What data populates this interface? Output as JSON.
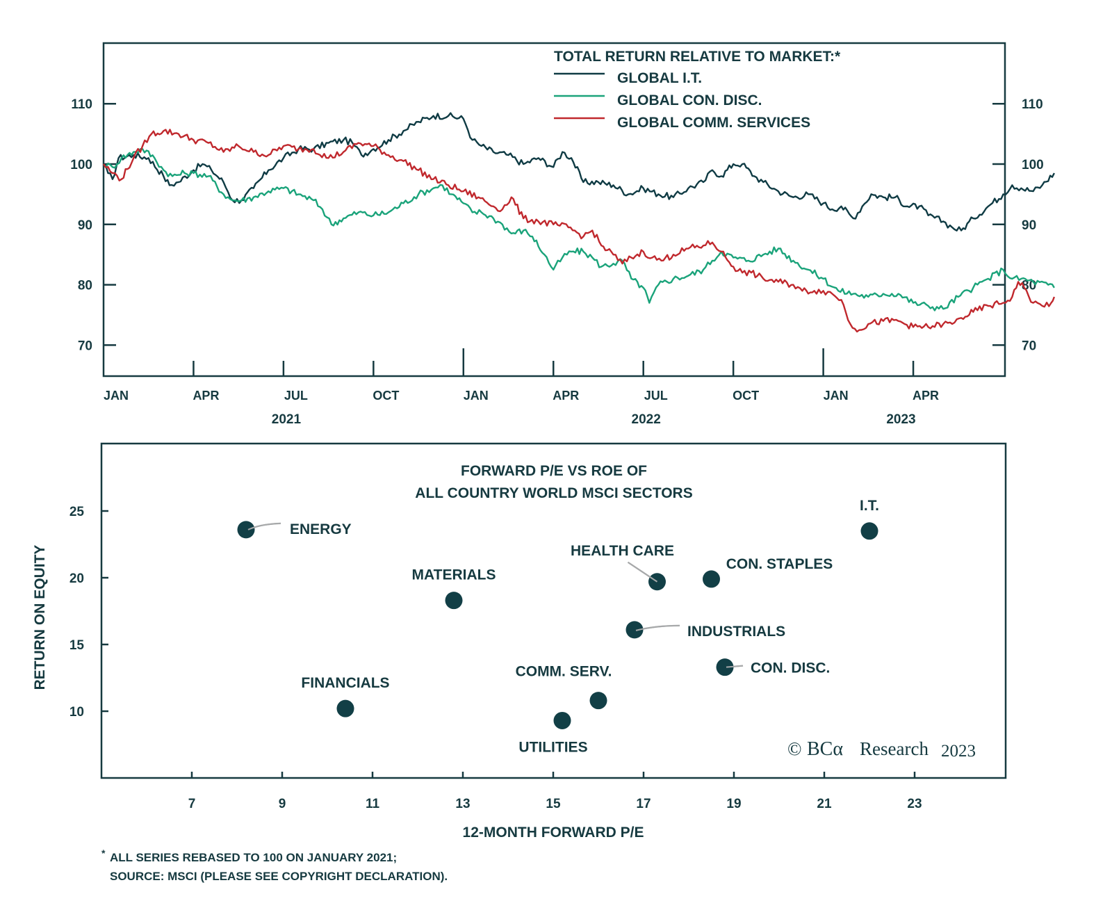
{
  "colors": {
    "frame": "#163a40",
    "global_it": "#0f3b44",
    "global_con_disc": "#1aa37a",
    "global_comm_services": "#c0282d",
    "point": "#123f46",
    "leader": "#a7a9aa"
  },
  "chart_data": [
    {
      "type": "line",
      "title": "TOTAL RETURN RELATIVE TO MARKET:*",
      "xlabel": "",
      "ylabel": "",
      "ylim": [
        65,
        120
      ],
      "yticks": [
        70,
        80,
        90,
        100,
        110
      ],
      "ytick_labels": [
        "70",
        "80",
        "90",
        "100",
        "110"
      ],
      "x_unit": "months since Jan 2021",
      "xlim": [
        0,
        30
      ],
      "xticks": [
        0,
        3,
        6,
        9,
        12,
        15,
        18,
        21,
        24,
        27
      ],
      "xtick_labels": [
        "JAN",
        "APR",
        "JUL",
        "OCT",
        "JAN",
        "APR",
        "JUL",
        "OCT",
        "JAN",
        "APR"
      ],
      "year_labels": [
        {
          "label": "2021",
          "at": 6
        },
        {
          "label": "2022",
          "at": 18
        },
        {
          "label": "2023",
          "at": 26.5
        }
      ],
      "legend_position": "top-right",
      "grid": false,
      "series": [
        {
          "name": "GLOBAL I.T.",
          "color_key": "global_it",
          "points": [
            [
              0,
              100
            ],
            [
              0.15,
              98.5
            ],
            [
              0.3,
              97.5
            ],
            [
              0.5,
              101
            ],
            [
              1,
              101.5
            ],
            [
              1.5,
              101
            ],
            [
              2,
              98
            ],
            [
              2.2,
              96.5
            ],
            [
              2.5,
              97
            ],
            [
              3,
              99
            ],
            [
              3.3,
              100
            ],
            [
              3.6,
              99
            ],
            [
              4,
              97
            ],
            [
              4.3,
              94
            ],
            [
              4.6,
              94
            ],
            [
              5,
              96
            ],
            [
              5.5,
              99
            ],
            [
              6,
              101
            ],
            [
              6.5,
              102.5
            ],
            [
              7,
              102.5
            ],
            [
              7.5,
              103.5
            ],
            [
              8,
              104
            ],
            [
              8.3,
              103.5
            ],
            [
              8.6,
              101.5
            ],
            [
              9,
              102.5
            ],
            [
              9.5,
              104
            ],
            [
              10,
              105.5
            ],
            [
              10.5,
              107
            ],
            [
              11,
              108
            ],
            [
              11.5,
              108
            ],
            [
              12,
              107.5
            ],
            [
              12.3,
              104
            ],
            [
              12.6,
              103
            ],
            [
              13,
              102
            ],
            [
              13.5,
              101.5
            ],
            [
              14,
              100
            ],
            [
              14.5,
              101
            ],
            [
              15,
              99.5
            ],
            [
              15.3,
              102
            ],
            [
              15.6,
              101
            ],
            [
              16,
              97
            ],
            [
              16.5,
              97
            ],
            [
              17,
              96.5
            ],
            [
              17.5,
              95
            ],
            [
              18,
              96
            ],
            [
              18.5,
              95
            ],
            [
              19,
              94.5
            ],
            [
              19.5,
              96
            ],
            [
              20,
              97
            ],
            [
              20.3,
              99
            ],
            [
              20.6,
              98
            ],
            [
              21,
              100
            ],
            [
              21.3,
              100
            ],
            [
              21.7,
              98
            ],
            [
              22,
              97
            ],
            [
              22.5,
              95.5
            ],
            [
              23,
              94.5
            ],
            [
              23.5,
              95
            ],
            [
              24,
              93.5
            ],
            [
              24.3,
              92.5
            ],
            [
              24.6,
              93
            ],
            [
              25,
              91
            ],
            [
              25.3,
              93
            ],
            [
              25.6,
              95
            ],
            [
              26,
              94.5
            ],
            [
              26.4,
              94.5
            ],
            [
              26.8,
              93
            ],
            [
              27.2,
              93
            ],
            [
              27.5,
              91.5
            ],
            [
              28,
              90.5
            ],
            [
              28.3,
              89.5
            ],
            [
              28.6,
              89
            ],
            [
              29,
              91
            ],
            [
              29.5,
              93
            ],
            [
              30,
              95
            ],
            [
              30.3,
              96.5
            ],
            [
              30.6,
              96
            ],
            [
              31,
              95.5
            ],
            [
              31.3,
              96.5
            ],
            [
              31.7,
              98.5
            ]
          ]
        },
        {
          "name": "GLOBAL CON. DISC.",
          "color_key": "global_con_disc",
          "points": [
            [
              0,
              100
            ],
            [
              0.3,
              99.5
            ],
            [
              0.6,
              101
            ],
            [
              1,
              102
            ],
            [
              1.3,
              102.5
            ],
            [
              1.7,
              101
            ],
            [
              2,
              99
            ],
            [
              2.3,
              98
            ],
            [
              2.7,
              98.5
            ],
            [
              3,
              98.5
            ],
            [
              3.5,
              98
            ],
            [
              4,
              95
            ],
            [
              4.3,
              94
            ],
            [
              4.6,
              94
            ],
            [
              5,
              94.5
            ],
            [
              5.5,
              95.5
            ],
            [
              6,
              96
            ],
            [
              6.5,
              95
            ],
            [
              7,
              94
            ],
            [
              7.3,
              92.5
            ],
            [
              7.6,
              90
            ],
            [
              8,
              91
            ],
            [
              8.5,
              92
            ],
            [
              9,
              91.5
            ],
            [
              9.5,
              92
            ],
            [
              10,
              93.5
            ],
            [
              10.5,
              95
            ],
            [
              11,
              96
            ],
            [
              11.3,
              96.5
            ],
            [
              11.6,
              95
            ],
            [
              12,
              93.5
            ],
            [
              12.3,
              92
            ],
            [
              12.6,
              92
            ],
            [
              13,
              91
            ],
            [
              13.3,
              90
            ],
            [
              13.6,
              88.5
            ],
            [
              14,
              89
            ],
            [
              14.3,
              88
            ],
            [
              14.7,
              85
            ],
            [
              15,
              82.5
            ],
            [
              15.3,
              84.5
            ],
            [
              15.6,
              85.5
            ],
            [
              16,
              85.5
            ],
            [
              16.3,
              84.5
            ],
            [
              16.6,
              83
            ],
            [
              17,
              83.5
            ],
            [
              17.3,
              84
            ],
            [
              17.6,
              81
            ],
            [
              18,
              79.5
            ],
            [
              18.2,
              77
            ],
            [
              18.5,
              80
            ],
            [
              19,
              81
            ],
            [
              19.5,
              81.5
            ],
            [
              20,
              82.5
            ],
            [
              20.3,
              84
            ],
            [
              20.6,
              85.5
            ],
            [
              21,
              84.5
            ],
            [
              21.5,
              84
            ],
            [
              22,
              85
            ],
            [
              22.5,
              86
            ],
            [
              23,
              84
            ],
            [
              23.5,
              82.5
            ],
            [
              24,
              81
            ],
            [
              24.5,
              79
            ],
            [
              25,
              78.5
            ],
            [
              25.5,
              78
            ],
            [
              26,
              78.5
            ],
            [
              26.5,
              78.5
            ],
            [
              27,
              77
            ],
            [
              27.5,
              76.5
            ],
            [
              28,
              76
            ],
            [
              28.5,
              78
            ],
            [
              29,
              79.5
            ],
            [
              29.5,
              81
            ],
            [
              30,
              82.5
            ],
            [
              30.3,
              81
            ],
            [
              30.6,
              81
            ],
            [
              31,
              80.5
            ],
            [
              31.5,
              80
            ],
            [
              31.7,
              79.5
            ]
          ]
        },
        {
          "name": "GLOBAL COMM. SERVICES",
          "color_key": "global_comm_services",
          "points": [
            [
              0,
              100
            ],
            [
              0.3,
              98.5
            ],
            [
              0.6,
              97.5
            ],
            [
              1,
              101
            ],
            [
              1.3,
              103
            ],
            [
              1.6,
              105
            ],
            [
              2,
              105.5
            ],
            [
              2.5,
              105
            ],
            [
              3,
              104
            ],
            [
              3.5,
              103.5
            ],
            [
              4,
              102
            ],
            [
              4.5,
              103
            ],
            [
              5,
              102
            ],
            [
              5.5,
              101.5
            ],
            [
              6,
              103
            ],
            [
              6.5,
              102.5
            ],
            [
              7,
              102.5
            ],
            [
              7.5,
              101
            ],
            [
              8,
              102
            ],
            [
              8.5,
              103.5
            ],
            [
              9,
              103
            ],
            [
              9.5,
              101.5
            ],
            [
              10,
              100.5
            ],
            [
              10.5,
              99
            ],
            [
              11,
              97.5
            ],
            [
              11.5,
              96.5
            ],
            [
              12,
              95.5
            ],
            [
              12.5,
              94.5
            ],
            [
              13,
              93
            ],
            [
              13.3,
              92.5
            ],
            [
              13.6,
              94.5
            ],
            [
              14,
              91
            ],
            [
              14.5,
              90.5
            ],
            [
              15,
              90
            ],
            [
              15.5,
              89.5
            ],
            [
              16,
              88
            ],
            [
              16.3,
              89
            ],
            [
              16.6,
              86.5
            ],
            [
              17,
              85
            ],
            [
              17.3,
              83.5
            ],
            [
              17.6,
              84.5
            ],
            [
              18,
              85.5
            ],
            [
              18.3,
              84.5
            ],
            [
              18.6,
              84
            ],
            [
              19,
              85
            ],
            [
              19.5,
              86
            ],
            [
              20,
              86.5
            ],
            [
              20.3,
              87
            ],
            [
              20.6,
              85.5
            ],
            [
              21,
              83
            ],
            [
              21.3,
              82
            ],
            [
              21.6,
              82
            ],
            [
              22,
              81
            ],
            [
              22.5,
              80.5
            ],
            [
              23,
              80
            ],
            [
              23.3,
              79
            ],
            [
              23.7,
              79
            ],
            [
              24,
              79
            ],
            [
              24.3,
              78.5
            ],
            [
              24.6,
              77.5
            ],
            [
              24.9,
              73.5
            ],
            [
              25.2,
              72.5
            ],
            [
              25.5,
              73.5
            ],
            [
              26,
              74
            ],
            [
              26.5,
              74
            ],
            [
              27,
              73
            ],
            [
              27.5,
              73
            ],
            [
              28,
              73.5
            ],
            [
              28.3,
              73.5
            ],
            [
              28.6,
              74.5
            ],
            [
              29,
              75.5
            ],
            [
              29.5,
              76.5
            ],
            [
              30,
              77
            ],
            [
              30.3,
              78
            ],
            [
              30.5,
              80.5
            ],
            [
              30.7,
              79.5
            ],
            [
              31,
              77
            ],
            [
              31.3,
              76.5
            ],
            [
              31.6,
              77
            ],
            [
              31.7,
              78
            ]
          ]
        }
      ]
    },
    {
      "type": "scatter",
      "title": [
        "FORWARD P/E VS ROE OF",
        "ALL COUNTRY WORLD MSCI SECTORS"
      ],
      "xlabel": "12-MONTH FORWARD P/E",
      "ylabel": "RETURN ON EQUITY",
      "xlim": [
        5,
        25
      ],
      "ylim": [
        5,
        29
      ],
      "xticks": [
        7,
        9,
        11,
        13,
        15,
        17,
        19,
        21,
        23
      ],
      "yticks": [
        10,
        15,
        20,
        25
      ],
      "grid": false,
      "points": [
        {
          "label": "ENERGY",
          "x": 8.2,
          "y": 23.6,
          "label_pos": "right",
          "leader": true
        },
        {
          "label": "MATERIALS",
          "x": 12.8,
          "y": 18.3,
          "label_pos": "above"
        },
        {
          "label": "FINANCIALS",
          "x": 10.4,
          "y": 10.2,
          "label_pos": "above"
        },
        {
          "label": "UTILITIES",
          "x": 15.2,
          "y": 9.3,
          "label_pos": "below"
        },
        {
          "label": "COMM. SERV.",
          "x": 16.0,
          "y": 10.8,
          "label_pos": "above-left"
        },
        {
          "label": "HEALTH CARE",
          "x": 17.3,
          "y": 19.7,
          "label_pos": "above-left",
          "leader": true
        },
        {
          "label": "INDUSTRIALS",
          "x": 16.8,
          "y": 16.1,
          "label_pos": "right",
          "leader": true
        },
        {
          "label": "CON. STAPLES",
          "x": 18.5,
          "y": 19.9,
          "label_pos": "above-right"
        },
        {
          "label": "CON. DISC.",
          "x": 18.8,
          "y": 13.3,
          "label_pos": "right",
          "leader": true
        },
        {
          "label": "I.T.",
          "x": 22.0,
          "y": 23.5,
          "label_pos": "above"
        }
      ]
    }
  ],
  "watermark": {
    "copyright": "©",
    "brand": "BCα",
    "research": "Research",
    "year": "2023"
  },
  "footnote": {
    "marker": "*",
    "line1": "ALL SERIES REBASED TO 100 ON JANUARY 2021;",
    "line2": "SOURCE: MSCI (PLEASE SEE COPYRIGHT DECLARATION)."
  }
}
